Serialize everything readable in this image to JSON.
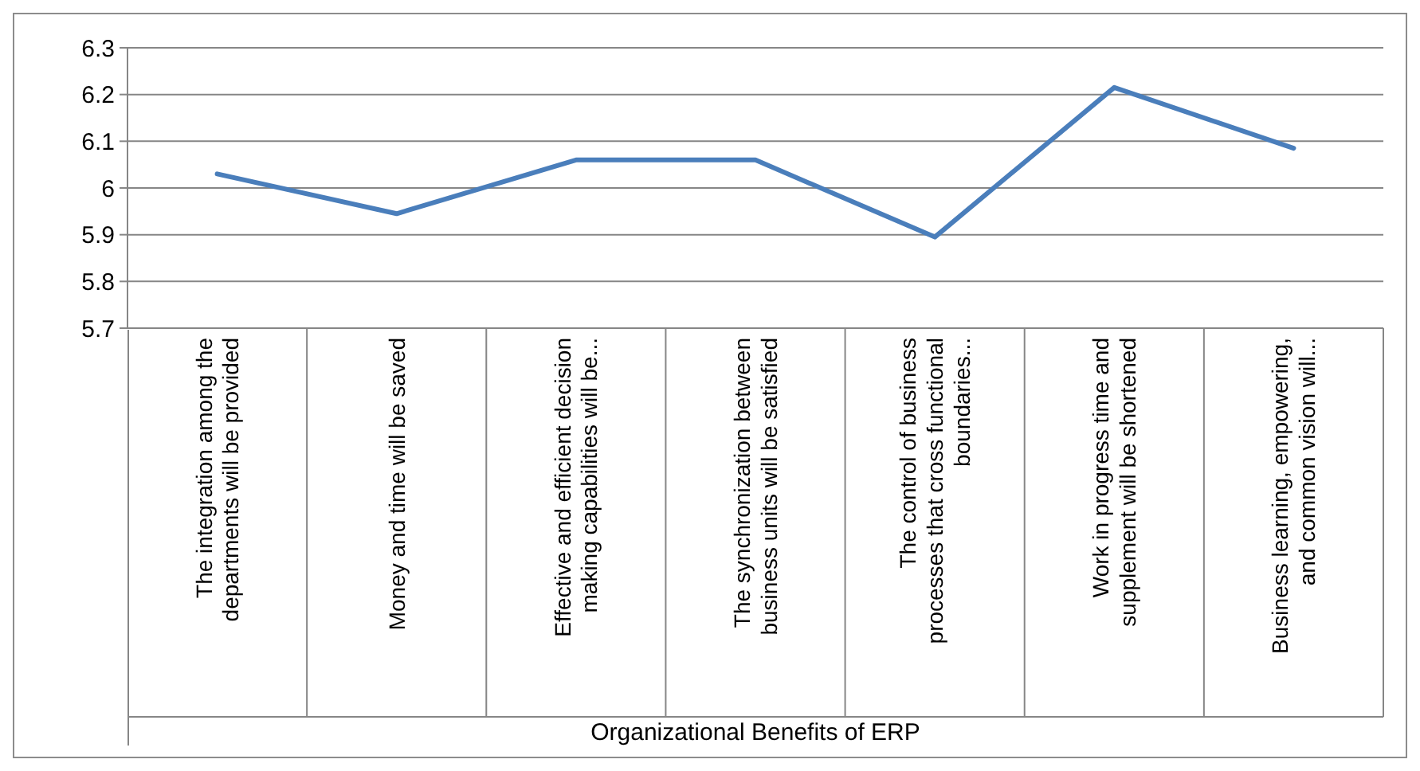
{
  "chart_data": {
    "type": "line",
    "xlabel": "Organizational Benefits of ERP",
    "categories": [
      "The integration among the departments will be provided",
      "Money and time will be saved",
      "Effective and efficient decision making capabilities will be...",
      "The synchronization between business units will be satisfied",
      "The control of business processes that cross functional boundaries...",
      "Work in progress time and supplement will be shortened",
      "Business learning, empowering, and common vision will..."
    ],
    "series": [
      {
        "color": "#4a7ebb",
        "values": [
          6.03,
          5.945,
          6.06,
          6.06,
          5.895,
          6.215,
          6.085
        ]
      }
    ],
    "ylim": [
      5.7,
      6.3
    ],
    "yticks": [
      5.7,
      5.8,
      5.9,
      6,
      6.1,
      6.2,
      6.3
    ],
    "grid": "y",
    "marker": "none",
    "line_style": "solid"
  }
}
